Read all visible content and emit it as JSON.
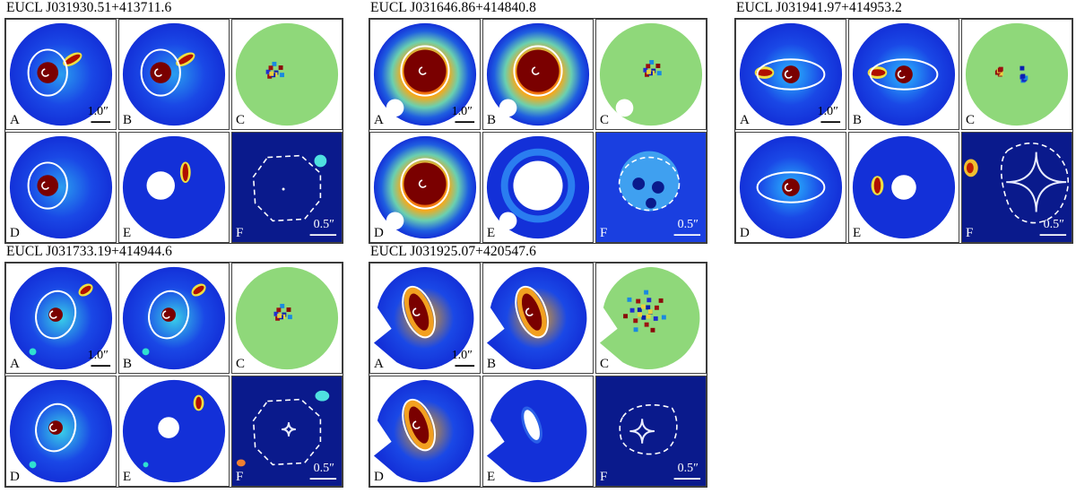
{
  "figure": {
    "lenses": [
      {
        "title": "EUCL J031930.51+413711.6",
        "panel_labels": [
          "A",
          "B",
          "C",
          "D",
          "E",
          "F"
        ],
        "scalebar_a": "1.0″",
        "scalebar_f": "0.5″",
        "critical_curve": "octagon",
        "caustic": "point",
        "ellipse_axis_ratio": 0.78
      },
      {
        "title": "EUCL J031646.86+414840.8",
        "panel_labels": [
          "A",
          "B",
          "C",
          "D",
          "E",
          "F"
        ],
        "scalebar_a": "1.0″",
        "scalebar_f": "0.5″",
        "critical_curve": "blob",
        "caustic": "none",
        "ellipse_axis_ratio": 0.95
      },
      {
        "title": "EUCL J031941.97+414953.2",
        "panel_labels": [
          "A",
          "B",
          "C",
          "D",
          "E",
          "F"
        ],
        "scalebar_a": "1.0″",
        "scalebar_f": "0.5″",
        "critical_curve": "lens-shape",
        "caustic": "astroid",
        "ellipse_axis_ratio": 0.35
      },
      {
        "title": "EUCL J031733.19+414944.6",
        "panel_labels": [
          "A",
          "B",
          "C",
          "D",
          "E",
          "F"
        ],
        "scalebar_a": "1.0″",
        "scalebar_f": "0.5″",
        "critical_curve": "octagon",
        "caustic": "astroid-small",
        "ellipse_axis_ratio": 0.82
      },
      {
        "title": "EUCL J031925.07+420547.6",
        "panel_labels": [
          "A",
          "B",
          "C",
          "D",
          "E",
          "F"
        ],
        "scalebar_a": "1.0″",
        "scalebar_f": "0.5″",
        "critical_curve": "blob-small",
        "caustic": "astroid",
        "ellipse_axis_ratio": 0.45
      }
    ],
    "colors": {
      "background_navy": "#0a1a8c",
      "disk_blue": "#1330d8",
      "lens_core": "#7a0000",
      "residual_green": "#8fd87a",
      "curve_white": "#ffffff"
    }
  }
}
